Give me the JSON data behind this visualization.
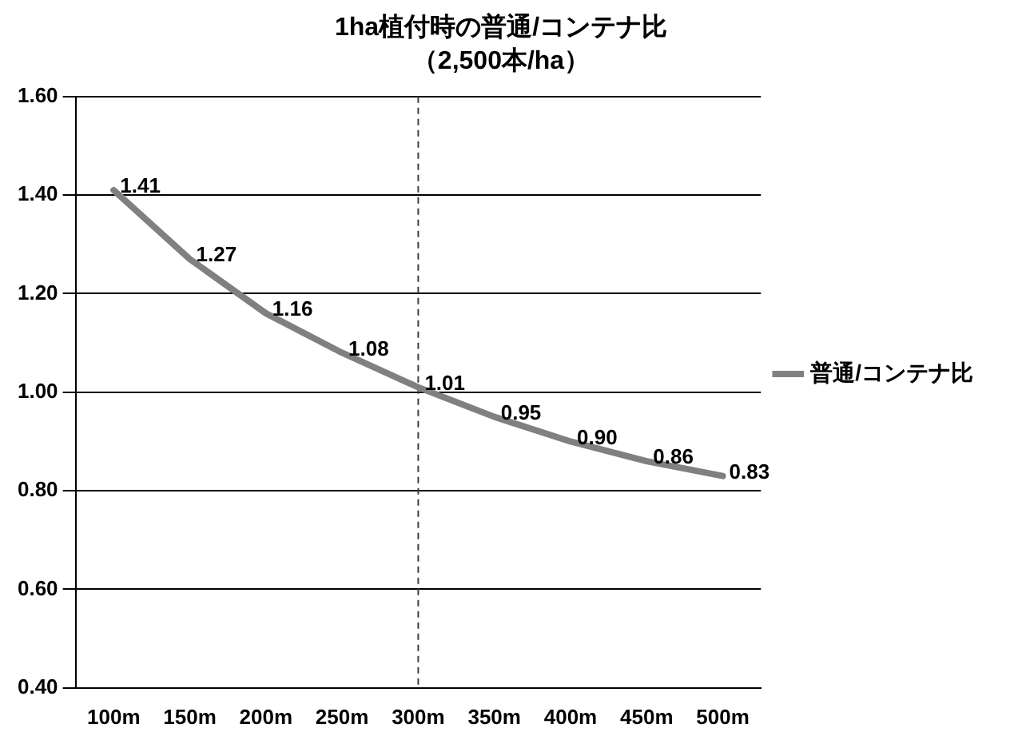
{
  "chart_data": {
    "type": "line",
    "title": "1ha植付時の普通/コンテナ比",
    "subtitle": "（2,500本/ha）",
    "categories": [
      "100m",
      "150m",
      "200m",
      "250m",
      "300m",
      "350m",
      "400m",
      "450m",
      "500m"
    ],
    "series": [
      {
        "name": "普通/コンテナ比",
        "color": "#808080",
        "values": [
          1.41,
          1.27,
          1.16,
          1.08,
          1.01,
          0.95,
          0.9,
          0.86,
          0.83
        ],
        "value_labels": [
          "1.41",
          "1.27",
          "1.16",
          "1.08",
          "1.01",
          "0.95",
          "0.90",
          "0.86",
          "0.83"
        ]
      }
    ],
    "ylim": [
      0.4,
      1.6
    ],
    "yticks": [
      {
        "value": 0.4,
        "label": "0.40"
      },
      {
        "value": 0.6,
        "label": "0.60"
      },
      {
        "value": 0.8,
        "label": "0.80"
      },
      {
        "value": 1.0,
        "label": "1.00"
      },
      {
        "value": 1.2,
        "label": "1.20"
      },
      {
        "value": 1.4,
        "label": "1.40"
      },
      {
        "value": 1.6,
        "label": "1.60"
      }
    ],
    "grid": "y",
    "legend": "right",
    "marker": "none",
    "line_style": "solid",
    "ref_lines": [
      {
        "axis": "x",
        "value": "300m",
        "line_style": "dashed",
        "color": "#404040"
      }
    ]
  }
}
